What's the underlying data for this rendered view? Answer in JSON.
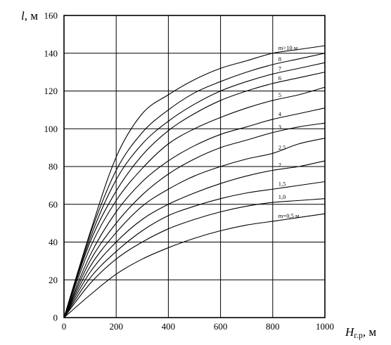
{
  "chart_data": {
    "type": "line",
    "title": "",
    "xlabel_main": "H",
    "xlabel_sub": "г.р",
    "xlabel_unit": ", м",
    "ylabel_main": "l",
    "ylabel_unit": ", м",
    "xlim": [
      0,
      1000
    ],
    "ylim": [
      0,
      160
    ],
    "xticks": [
      "0",
      "200",
      "400",
      "600",
      "800",
      "1000"
    ],
    "yticks": [
      "0",
      "20",
      "40",
      "60",
      "80",
      "100",
      "120",
      "140",
      "160"
    ],
    "grid": true,
    "series": [
      {
        "label": "m>10 м",
        "points": [
          [
            0,
            0
          ],
          [
            100,
            45
          ],
          [
            200,
            85
          ],
          [
            300,
            108
          ],
          [
            400,
            118
          ],
          [
            500,
            126
          ],
          [
            600,
            132
          ],
          [
            700,
            136
          ],
          [
            800,
            140
          ],
          [
            900,
            142
          ],
          [
            1000,
            144
          ]
        ]
      },
      {
        "label": "8",
        "points": [
          [
            0,
            0
          ],
          [
            100,
            44
          ],
          [
            200,
            78
          ],
          [
            300,
            98
          ],
          [
            400,
            110
          ],
          [
            500,
            119
          ],
          [
            600,
            125
          ],
          [
            700,
            130
          ],
          [
            800,
            134
          ],
          [
            900,
            137
          ],
          [
            1000,
            140
          ]
        ]
      },
      {
        "label": "7",
        "points": [
          [
            0,
            0
          ],
          [
            100,
            42
          ],
          [
            200,
            73
          ],
          [
            300,
            92
          ],
          [
            400,
            104
          ],
          [
            500,
            113
          ],
          [
            600,
            120
          ],
          [
            700,
            125
          ],
          [
            800,
            129
          ],
          [
            900,
            132
          ],
          [
            1000,
            135
          ]
        ]
      },
      {
        "label": "6",
        "points": [
          [
            0,
            0
          ],
          [
            100,
            40
          ],
          [
            200,
            67
          ],
          [
            300,
            86
          ],
          [
            400,
            99
          ],
          [
            500,
            108
          ],
          [
            600,
            115
          ],
          [
            700,
            120
          ],
          [
            800,
            124
          ],
          [
            900,
            127
          ],
          [
            1000,
            130
          ]
        ]
      },
      {
        "label": "5",
        "points": [
          [
            0,
            0
          ],
          [
            100,
            37
          ],
          [
            200,
            62
          ],
          [
            300,
            79
          ],
          [
            400,
            92
          ],
          [
            500,
            100
          ],
          [
            600,
            106
          ],
          [
            700,
            111
          ],
          [
            800,
            115
          ],
          [
            900,
            118
          ],
          [
            1000,
            122
          ]
        ]
      },
      {
        "label": "4",
        "points": [
          [
            0,
            0
          ],
          [
            100,
            33
          ],
          [
            200,
            56
          ],
          [
            300,
            72
          ],
          [
            400,
            83
          ],
          [
            500,
            91
          ],
          [
            600,
            97
          ],
          [
            700,
            101
          ],
          [
            800,
            105
          ],
          [
            900,
            108
          ],
          [
            1000,
            111
          ]
        ]
      },
      {
        "label": "3",
        "points": [
          [
            0,
            0
          ],
          [
            100,
            30
          ],
          [
            200,
            50
          ],
          [
            300,
            65
          ],
          [
            400,
            76
          ],
          [
            500,
            84
          ],
          [
            600,
            90
          ],
          [
            700,
            94
          ],
          [
            800,
            98
          ],
          [
            900,
            101
          ],
          [
            1000,
            103
          ]
        ]
      },
      {
        "label": "2,5",
        "points": [
          [
            0,
            0
          ],
          [
            100,
            27
          ],
          [
            200,
            45
          ],
          [
            300,
            59
          ],
          [
            400,
            68
          ],
          [
            500,
            75
          ],
          [
            600,
            80
          ],
          [
            700,
            84
          ],
          [
            800,
            87
          ],
          [
            900,
            92
          ],
          [
            1000,
            95
          ]
        ]
      },
      {
        "label": "2",
        "points": [
          [
            0,
            0
          ],
          [
            100,
            24
          ],
          [
            200,
            40
          ],
          [
            300,
            52
          ],
          [
            400,
            60
          ],
          [
            500,
            66
          ],
          [
            600,
            71
          ],
          [
            700,
            75
          ],
          [
            800,
            78
          ],
          [
            900,
            80
          ],
          [
            1000,
            83
          ]
        ]
      },
      {
        "label": "1,5",
        "points": [
          [
            0,
            0
          ],
          [
            100,
            21
          ],
          [
            200,
            35
          ],
          [
            300,
            46
          ],
          [
            400,
            54
          ],
          [
            500,
            59
          ],
          [
            600,
            63
          ],
          [
            700,
            66
          ],
          [
            800,
            68
          ],
          [
            900,
            70
          ],
          [
            1000,
            72
          ]
        ]
      },
      {
        "label": "1,0",
        "points": [
          [
            0,
            0
          ],
          [
            100,
            18
          ],
          [
            200,
            31
          ],
          [
            300,
            40
          ],
          [
            400,
            47
          ],
          [
            500,
            52
          ],
          [
            600,
            56
          ],
          [
            700,
            59
          ],
          [
            800,
            61
          ],
          [
            900,
            62
          ],
          [
            1000,
            63
          ]
        ]
      },
      {
        "label": "m=0,5 м",
        "points": [
          [
            0,
            0
          ],
          [
            100,
            12
          ],
          [
            200,
            23
          ],
          [
            300,
            31
          ],
          [
            400,
            37
          ],
          [
            500,
            42
          ],
          [
            600,
            46
          ],
          [
            700,
            49
          ],
          [
            800,
            51
          ],
          [
            900,
            53
          ],
          [
            1000,
            55
          ]
        ]
      }
    ]
  }
}
